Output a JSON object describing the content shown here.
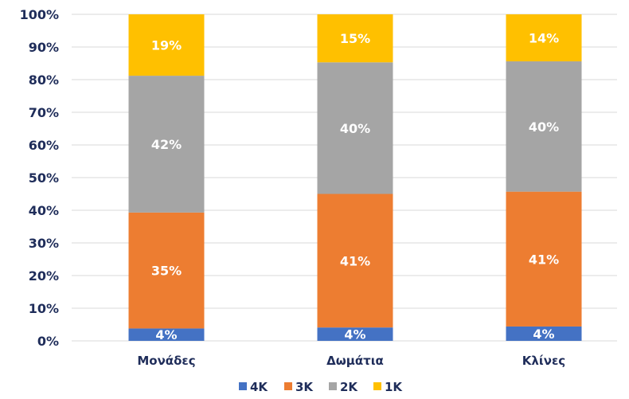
{
  "chart_data": {
    "type": "bar",
    "stacked": true,
    "percent": true,
    "title": "",
    "xlabel": "",
    "ylabel": "",
    "categories": [
      "Μονάδες",
      "Δωμάτια",
      "Κλίνες"
    ],
    "series": [
      {
        "name": "4K",
        "color": "#4472c4",
        "values": [
          4,
          4,
          4
        ]
      },
      {
        "name": "3K",
        "color": "#ed7d31",
        "values": [
          35,
          41,
          41
        ]
      },
      {
        "name": "2K",
        "color": "#a5a5a5",
        "values": [
          42,
          40,
          40
        ]
      },
      {
        "name": "1K",
        "color": "#ffc000",
        "values": [
          19,
          15,
          14
        ]
      }
    ],
    "stack_tops": [
      [
        3.8,
        39.3,
        81.2,
        100
      ],
      [
        4.1,
        45.0,
        85.3,
        100
      ],
      [
        4.4,
        45.7,
        85.6,
        100
      ]
    ],
    "data_labels": [
      [
        "4%",
        "35%",
        "42%",
        "19%"
      ],
      [
        "4%",
        "41%",
        "40%",
        "15%"
      ],
      [
        "4%",
        "41%",
        "40%",
        "14%"
      ]
    ],
    "ylim": [
      0,
      100
    ],
    "yticks": [
      0,
      10,
      20,
      30,
      40,
      50,
      60,
      70,
      80,
      90,
      100
    ],
    "ytick_labels": [
      "0%",
      "10%",
      "20%",
      "30%",
      "40%",
      "50%",
      "60%",
      "70%",
      "80%",
      "90%",
      "100%"
    ],
    "grid": true,
    "legend": "bottom"
  }
}
